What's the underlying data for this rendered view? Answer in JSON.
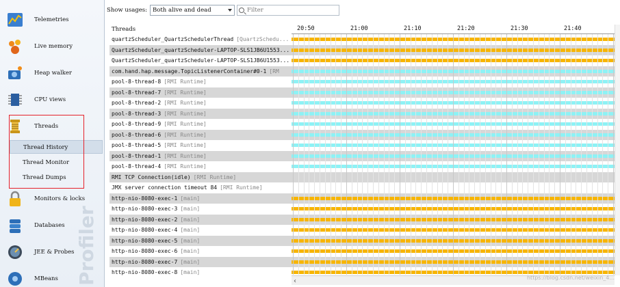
{
  "sidebar": {
    "items": [
      {
        "label": "Telemetries",
        "icon": "telemetries-icon"
      },
      {
        "label": "Live memory",
        "icon": "live-memory-icon"
      },
      {
        "label": "Heap walker",
        "icon": "heap-walker-icon"
      },
      {
        "label": "CPU views",
        "icon": "cpu-views-icon"
      },
      {
        "label": "Threads",
        "icon": "threads-icon"
      },
      {
        "label": "Monitors & locks",
        "icon": "lock-icon"
      },
      {
        "label": "Databases",
        "icon": "database-icon"
      },
      {
        "label": "JEE & Probes",
        "icon": "probes-icon"
      },
      {
        "label": "MBeans",
        "icon": "mbeans-icon"
      }
    ],
    "thread_subitems": [
      "Thread History",
      "Thread Monitor",
      "Thread Dumps"
    ],
    "active_subitem": "Thread History",
    "vertical_brand": "Profiler"
  },
  "toolbar": {
    "show_usages_label": "Show usages:",
    "usage_value": "Both alive and dead",
    "filter_placeholder": "Filter"
  },
  "list": {
    "header": "Threads",
    "rows": [
      {
        "name": "quartzScheduler_QuartzSchedulerThread",
        "group": "[QuartzSchedu...",
        "alt": false,
        "bar": "yellow"
      },
      {
        "name": "QuartzScheduler_quartzScheduler-LAPTOP-SLS1JB6U1553...",
        "group": "",
        "alt": true,
        "bar": "yellow"
      },
      {
        "name": "QuartzScheduler_quartzScheduler-LAPTOP-SLS1JB6U1553...",
        "group": "",
        "alt": false,
        "bar": "yellow"
      },
      {
        "name": "com.hand.hap.message.TopicListenerContainer#0-1",
        "group": "[RM",
        "alt": true,
        "bar": "cyan"
      },
      {
        "name": "pool-8-thread-8",
        "group": "[RMI Runtime]",
        "alt": false,
        "bar": "cyan"
      },
      {
        "name": "pool-8-thread-7",
        "group": "[RMI Runtime]",
        "alt": true,
        "bar": "cyan"
      },
      {
        "name": "pool-8-thread-2",
        "group": "[RMI Runtime]",
        "alt": false,
        "bar": "cyan"
      },
      {
        "name": "pool-8-thread-3",
        "group": "[RMI Runtime]",
        "alt": true,
        "bar": "cyan"
      },
      {
        "name": "pool-8-thread-9",
        "group": "[RMI Runtime]",
        "alt": false,
        "bar": "cyan"
      },
      {
        "name": "pool-8-thread-6",
        "group": "[RMI Runtime]",
        "alt": true,
        "bar": "cyan"
      },
      {
        "name": "pool-8-thread-5",
        "group": "[RMI Runtime]",
        "alt": false,
        "bar": "cyan"
      },
      {
        "name": "pool-8-thread-1",
        "group": "[RMI Runtime]",
        "alt": true,
        "bar": "cyan"
      },
      {
        "name": "pool-8-thread-4",
        "group": "[RMI Runtime]",
        "alt": false,
        "bar": "cyan"
      },
      {
        "name": "RMI TCP Connection(idle)",
        "group": "[RMI Runtime]",
        "alt": true,
        "bar": "none"
      },
      {
        "name": "JMX server connection timeout 84",
        "group": "[RMI Runtime]",
        "alt": false,
        "bar": "none"
      },
      {
        "name": "http-nio-8080-exec-1",
        "group": "[main]",
        "alt": true,
        "bar": "yellow"
      },
      {
        "name": "http-nio-8080-exec-3",
        "group": "[main]",
        "alt": false,
        "bar": "yellow"
      },
      {
        "name": "http-nio-8080-exec-2",
        "group": "[main]",
        "alt": true,
        "bar": "yellow"
      },
      {
        "name": "http-nio-8080-exec-4",
        "group": "[main]",
        "alt": false,
        "bar": "yellow"
      },
      {
        "name": "http-nio-8080-exec-5",
        "group": "[main]",
        "alt": true,
        "bar": "yellow"
      },
      {
        "name": "http-nio-8080-exec-6",
        "group": "[main]",
        "alt": false,
        "bar": "yellow"
      },
      {
        "name": "http-nio-8080-exec-7",
        "group": "[main]",
        "alt": true,
        "bar": "yellow"
      },
      {
        "name": "http-nio-8080-exec-8",
        "group": "[main]",
        "alt": false,
        "bar": "yellow"
      }
    ]
  },
  "timeline": {
    "ticks": [
      "20:50",
      "21:00",
      "21:10",
      "21:20",
      "21:30",
      "21:40"
    ],
    "colors": {
      "yellow": "#f7b500",
      "cyan": "#8ef2f5"
    }
  },
  "watermark": "https://blog.csdn.net/weixin_4..."
}
